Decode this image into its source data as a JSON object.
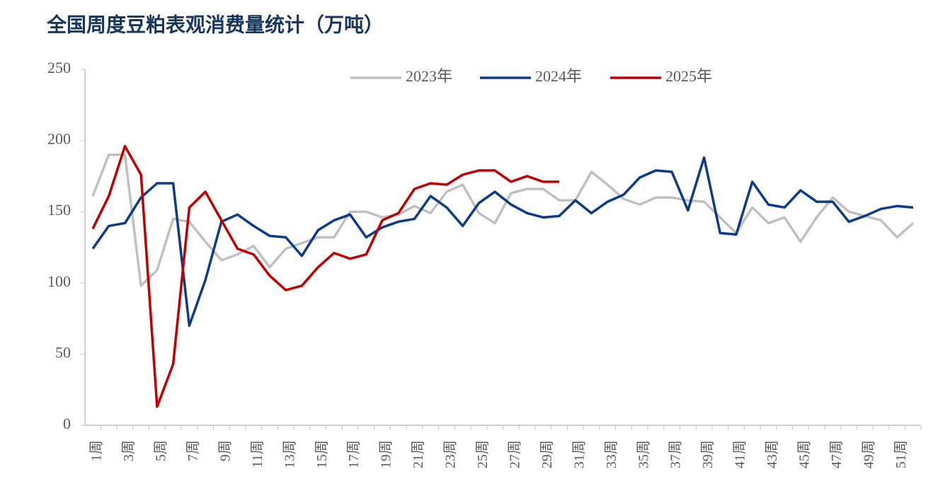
{
  "chart_data": {
    "type": "line",
    "title": "全国周度豆粕表观消费量统计（万吨）",
    "categories": [
      "1周",
      null,
      "3周",
      null,
      "5周",
      null,
      "7周",
      null,
      "9周",
      null,
      "11周",
      null,
      "13周",
      null,
      "15周",
      null,
      "17周",
      null,
      "19周",
      null,
      "21周",
      null,
      "23周",
      null,
      "25周",
      null,
      "27周",
      null,
      "29周",
      null,
      "31周",
      null,
      "33周",
      null,
      "35周",
      null,
      "37周",
      null,
      "39周",
      null,
      "41周",
      null,
      "43周",
      null,
      "45周",
      null,
      "47周",
      null,
      "49周",
      null,
      "51周",
      null
    ],
    "series": [
      {
        "name": "2023年",
        "color": "#c0c0c0",
        "values": [
          161,
          190,
          190,
          98,
          109,
          145,
          143,
          129,
          116,
          120,
          126,
          111,
          124,
          128,
          132,
          132,
          150,
          150,
          146,
          148,
          154,
          149,
          164,
          169,
          149,
          142,
          163,
          166,
          166,
          158,
          158,
          178,
          169,
          159,
          155,
          160,
          160,
          158,
          157,
          146,
          135,
          153,
          142,
          146,
          129,
          146,
          160,
          150,
          147,
          144,
          132,
          142
        ]
      },
      {
        "name": "2024年",
        "color": "#0d3a8a",
        "values": [
          124,
          140,
          142,
          160,
          170,
          170,
          70,
          102,
          143,
          148,
          140,
          133,
          132,
          119,
          137,
          144,
          148,
          132,
          139,
          143,
          145,
          161,
          153,
          140,
          156,
          164,
          155,
          149,
          146,
          147,
          158,
          149,
          157,
          162,
          174,
          179,
          178,
          151,
          188,
          135,
          134,
          171,
          155,
          153,
          165,
          157,
          157,
          143,
          147,
          152,
          154,
          153
        ]
      },
      {
        "name": "2025年",
        "color": "#c00000",
        "values": [
          138,
          161,
          196,
          176,
          13,
          43,
          153,
          164,
          144,
          124,
          120,
          105,
          95,
          98,
          111,
          121,
          117,
          120,
          144,
          149,
          166,
          170,
          169,
          176,
          179,
          179,
          171,
          175,
          171,
          171,
          null,
          null,
          null,
          null,
          null,
          null,
          null,
          null,
          null,
          null,
          null,
          null,
          null,
          null,
          null,
          null,
          null,
          null,
          null,
          null,
          null,
          null
        ]
      }
    ],
    "ylim": [
      0,
      250
    ],
    "yticks": [
      0,
      50,
      100,
      150,
      200,
      250
    ]
  }
}
